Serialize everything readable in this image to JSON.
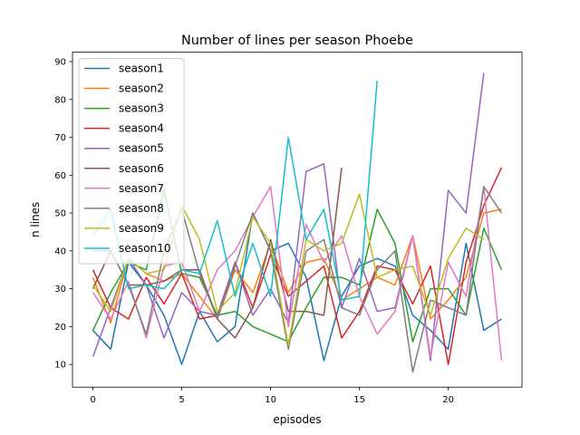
{
  "chart_data": {
    "type": "line",
    "title": "Number of lines per season Phoebe",
    "xlabel": "episodes",
    "ylabel": "n lines",
    "xlim": [
      -1.15,
      24.15
    ],
    "ylim": [
      4,
      92.5
    ],
    "xticks": [
      0,
      5,
      10,
      15,
      20
    ],
    "yticks": [
      10,
      20,
      30,
      40,
      50,
      60,
      70,
      80,
      90
    ],
    "grid": false,
    "legend_position": "upper left",
    "series": [
      {
        "name": "season1",
        "color": "#1f77b4",
        "x": [
          0,
          1,
          2,
          3,
          4,
          5,
          6,
          7,
          8,
          9,
          10,
          11,
          12,
          13,
          14,
          15,
          16,
          17,
          18,
          19,
          20,
          21,
          22,
          23
        ],
        "y": [
          19,
          14,
          37,
          31,
          23,
          10,
          24,
          16,
          20,
          50,
          40,
          42,
          33,
          11,
          28,
          36,
          38,
          36,
          23,
          19,
          14,
          42,
          19,
          22
        ]
      },
      {
        "name": "season2",
        "color": "#ff7f0e",
        "x": [
          0,
          1,
          2,
          3,
          4,
          5,
          6,
          7,
          8,
          9,
          10,
          11,
          12,
          13,
          14,
          15,
          16,
          17,
          18,
          19,
          20,
          21,
          22,
          23
        ],
        "y": [
          33,
          21,
          38,
          34,
          32,
          34,
          28,
          22,
          35,
          29,
          42,
          29,
          37,
          38,
          27,
          30,
          33,
          31,
          44,
          22,
          27,
          33,
          50,
          51
        ]
      },
      {
        "name": "season3",
        "color": "#2ca02c",
        "x": [
          0,
          1,
          2,
          3,
          4,
          5,
          6,
          7,
          8,
          9,
          10,
          11,
          12,
          13,
          14,
          15,
          16,
          17,
          18,
          19,
          20,
          21,
          22,
          23
        ],
        "y": [
          19,
          29,
          37,
          35,
          56,
          34,
          33,
          23,
          24,
          20,
          18,
          16,
          25,
          33,
          33,
          31,
          51,
          42,
          16,
          30,
          30,
          23,
          46,
          35
        ]
      },
      {
        "name": "season4",
        "color": "#d62728",
        "x": [
          0,
          1,
          2,
          3,
          4,
          5,
          6,
          7,
          8,
          9,
          10,
          11,
          12,
          13,
          14,
          15,
          16,
          17,
          18,
          19,
          20,
          21,
          22,
          23
        ],
        "y": [
          35,
          25,
          22,
          33,
          26,
          34,
          22,
          23,
          37,
          25,
          39,
          28,
          32,
          36,
          17,
          24,
          36,
          35,
          26,
          36,
          10,
          37,
          52,
          62
        ]
      },
      {
        "name": "season5",
        "color": "#9467bd",
        "x": [
          0,
          1,
          2,
          3,
          4,
          5,
          6,
          7,
          8,
          9,
          10,
          11,
          12,
          13,
          14,
          15,
          16,
          17,
          18,
          19,
          20,
          21,
          22
        ],
        "y": [
          12,
          25,
          38,
          31,
          17,
          29,
          24,
          23,
          37,
          23,
          30,
          21,
          61,
          63,
          25,
          38,
          24,
          25,
          44,
          11,
          56,
          50,
          87
        ]
      },
      {
        "name": "season6",
        "color": "#8c564b",
        "x": [
          0,
          1,
          2,
          3,
          4,
          5,
          6,
          7,
          8,
          9,
          10,
          11,
          12,
          13,
          14
        ],
        "y": [
          30,
          40,
          31,
          31,
          32,
          35,
          35,
          22,
          17,
          25,
          43,
          24,
          24,
          23,
          62
        ]
      },
      {
        "name": "season7",
        "color": "#e377c2",
        "x": [
          0,
          1,
          2,
          3,
          4,
          5,
          6,
          7,
          8,
          9,
          10,
          11,
          12,
          13,
          14,
          15,
          16,
          17,
          18,
          19,
          20,
          21,
          22,
          23
        ],
        "y": [
          29,
          22,
          32,
          17,
          36,
          37,
          24,
          35,
          40,
          49,
          57,
          20,
          47,
          37,
          44,
          28,
          18,
          24,
          44,
          12,
          37,
          28,
          57,
          11
        ]
      },
      {
        "name": "season8",
        "color": "#7f7f7f",
        "x": [
          0,
          1,
          2,
          3,
          4,
          5,
          6,
          7,
          8,
          9,
          10,
          11,
          12,
          13,
          14,
          15,
          16,
          17,
          18,
          19,
          20,
          21,
          22,
          23
        ],
        "y": [
          40,
          40,
          31,
          18,
          40,
          51,
          34,
          22,
          36,
          50,
          40,
          14,
          40,
          43,
          25,
          23,
          35,
          40,
          8,
          27,
          25,
          23,
          57,
          50
        ]
      },
      {
        "name": "season9",
        "color": "#bcbd22",
        "x": [
          0,
          1,
          2,
          3,
          4,
          5,
          6,
          7,
          8,
          9,
          10,
          11,
          12,
          13,
          14,
          15,
          16,
          17,
          18,
          19,
          20,
          21,
          22
        ],
        "y": [
          31,
          24,
          38,
          34,
          35,
          52,
          43,
          24,
          29,
          49,
          42,
          15,
          43,
          40,
          42,
          55,
          33,
          35,
          36,
          23,
          38,
          46,
          43
        ]
      },
      {
        "name": "season10",
        "color": "#17becf",
        "x": [
          0,
          1,
          2,
          3,
          4,
          5,
          6,
          7,
          8,
          9,
          10,
          11,
          12,
          13,
          14,
          15,
          16
        ],
        "y": [
          44,
          51,
          30,
          31,
          30,
          35,
          34,
          48,
          28,
          42,
          28,
          70,
          43,
          51,
          27,
          28,
          85
        ]
      }
    ]
  }
}
